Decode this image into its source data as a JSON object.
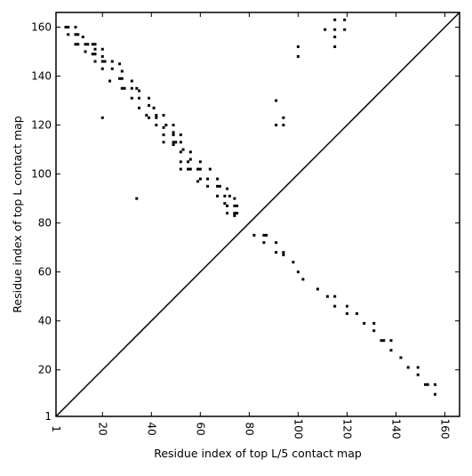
{
  "chart_data": {
    "type": "scatter",
    "xlabel": "Residue index of top L/5 contact map",
    "ylabel": "Residue index of top L contact map",
    "xlim": [
      1,
      166
    ],
    "ylim": [
      1,
      166
    ],
    "x_ticks": [
      1,
      20,
      40,
      60,
      80,
      100,
      120,
      140,
      160
    ],
    "x_tick_labels": [
      "1",
      "20",
      "40",
      "60",
      "80",
      "100",
      "120",
      "140",
      "160"
    ],
    "y_ticks": [
      1,
      20,
      40,
      60,
      80,
      100,
      120,
      140,
      160
    ],
    "y_tick_labels": [
      "1",
      "20",
      "40",
      "60",
      "80",
      "100",
      "120",
      "140",
      "160"
    ],
    "grid": false,
    "legend": "none",
    "x_tick_label_rotation": "vertical",
    "marker": "square",
    "color": "#000000",
    "diagonal": {
      "from": [
        1,
        1
      ],
      "to": [
        166,
        166
      ]
    },
    "series": [
      {
        "values": [
          [
            5,
            160
          ],
          [
            6,
            160
          ],
          [
            6,
            157
          ],
          [
            9,
            160
          ],
          [
            9,
            157
          ],
          [
            10,
            157
          ],
          [
            9,
            153
          ],
          [
            10,
            153
          ],
          [
            12,
            156
          ],
          [
            13,
            153
          ],
          [
            14,
            153
          ],
          [
            13,
            150
          ],
          [
            16,
            153
          ],
          [
            17,
            153
          ],
          [
            17,
            151
          ],
          [
            17,
            149
          ],
          [
            16,
            149
          ],
          [
            17,
            146
          ],
          [
            20,
            151
          ],
          [
            20,
            148
          ],
          [
            20,
            146
          ],
          [
            21,
            146
          ],
          [
            20,
            143
          ],
          [
            24,
            146
          ],
          [
            24,
            143
          ],
          [
            23,
            138
          ],
          [
            27,
            145
          ],
          [
            28,
            142
          ],
          [
            28,
            139
          ],
          [
            27,
            139
          ],
          [
            28,
            135
          ],
          [
            29,
            135
          ],
          [
            32,
            138
          ],
          [
            32,
            135
          ],
          [
            34,
            135
          ],
          [
            35,
            134
          ],
          [
            32,
            131
          ],
          [
            35,
            131
          ],
          [
            35,
            127
          ],
          [
            39,
            131
          ],
          [
            39,
            128
          ],
          [
            38,
            124
          ],
          [
            39,
            123
          ],
          [
            41,
            127
          ],
          [
            42,
            124
          ],
          [
            42,
            123
          ],
          [
            42,
            120
          ],
          [
            45,
            124
          ],
          [
            46,
            120
          ],
          [
            45,
            119
          ],
          [
            45,
            116
          ],
          [
            45,
            113
          ],
          [
            49,
            120
          ],
          [
            49,
            117
          ],
          [
            49,
            116
          ],
          [
            49,
            113
          ],
          [
            49,
            112
          ],
          [
            50,
            113
          ],
          [
            52,
            116
          ],
          [
            52,
            113
          ],
          [
            52,
            109
          ],
          [
            52,
            105
          ],
          [
            52,
            102
          ],
          [
            53,
            110
          ],
          [
            56,
            109
          ],
          [
            56,
            106
          ],
          [
            55,
            105
          ],
          [
            55,
            102
          ],
          [
            56,
            102
          ],
          [
            60,
            105
          ],
          [
            59,
            102
          ],
          [
            60,
            102
          ],
          [
            60,
            98
          ],
          [
            59,
            97
          ],
          [
            64,
            102
          ],
          [
            63,
            98
          ],
          [
            63,
            95
          ],
          [
            67,
            98
          ],
          [
            67,
            95
          ],
          [
            68,
            95
          ],
          [
            67,
            91
          ],
          [
            71,
            94
          ],
          [
            70,
            91
          ],
          [
            72,
            91
          ],
          [
            70,
            88
          ],
          [
            71,
            87
          ],
          [
            71,
            84
          ],
          [
            74,
            90
          ],
          [
            74,
            87
          ],
          [
            75,
            87
          ],
          [
            74,
            84
          ],
          [
            75,
            84
          ],
          [
            74,
            83
          ],
          [
            20,
            123
          ],
          [
            34,
            90
          ],
          [
            91,
            130
          ],
          [
            91,
            120
          ],
          [
            94,
            123
          ],
          [
            94,
            120
          ],
          [
            100,
            152
          ],
          [
            100,
            148
          ],
          [
            111,
            159
          ],
          [
            115,
            163
          ],
          [
            115,
            159
          ],
          [
            115,
            156
          ],
          [
            115,
            152
          ],
          [
            119,
            163
          ],
          [
            119,
            159
          ],
          [
            82,
            75
          ],
          [
            86,
            75
          ],
          [
            87,
            75
          ],
          [
            86,
            72
          ],
          [
            91,
            72
          ],
          [
            91,
            68
          ],
          [
            94,
            68
          ],
          [
            94,
            67
          ],
          [
            98,
            64
          ],
          [
            100,
            60
          ],
          [
            102,
            57
          ],
          [
            108,
            53
          ],
          [
            112,
            50
          ],
          [
            115,
            50
          ],
          [
            115,
            46
          ],
          [
            120,
            46
          ],
          [
            120,
            43
          ],
          [
            124,
            43
          ],
          [
            127,
            39
          ],
          [
            131,
            39
          ],
          [
            131,
            36
          ],
          [
            134,
            32
          ],
          [
            135,
            32
          ],
          [
            138,
            32
          ],
          [
            138,
            28
          ],
          [
            142,
            25
          ],
          [
            145,
            21
          ],
          [
            149,
            21
          ],
          [
            149,
            18
          ],
          [
            152,
            14
          ],
          [
            153,
            14
          ],
          [
            156,
            14
          ],
          [
            156,
            10
          ]
        ]
      }
    ]
  }
}
